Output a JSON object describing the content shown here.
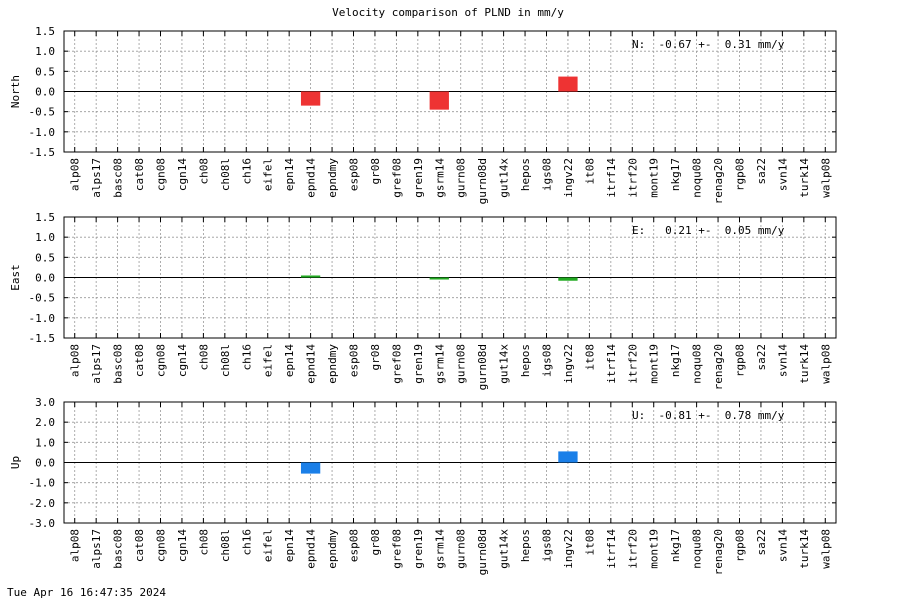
{
  "chart_data": {
    "type": "bar",
    "title": "Velocity comparison of PLND in mm/y",
    "categories": [
      "alp08",
      "alps17",
      "basc08",
      "cat08",
      "cgn08",
      "cgn14",
      "ch08",
      "ch08l",
      "ch16",
      "eifel",
      "epn14",
      "epnd14",
      "epndmy",
      "esp08",
      "gr08",
      "gref08",
      "gren19",
      "gsrm14",
      "gurn08",
      "gurn08d",
      "gut14x",
      "hepos",
      "igs08",
      "ingv22",
      "it08",
      "itrf14",
      "itrf20",
      "mont19",
      "nkg17",
      "noqu08",
      "renag20",
      "rgp08",
      "sa22",
      "svn14",
      "turk14",
      "walp08"
    ],
    "grid": true,
    "panels": [
      {
        "ylabel": "North",
        "ylim": [
          -1.5,
          1.5
        ],
        "yticks": [
          "1.5",
          "1.0",
          "0.5",
          "0.0",
          "-0.5",
          "-1.0",
          "-1.5"
        ],
        "ytick_values": [
          1.5,
          1.0,
          0.5,
          0.0,
          -0.5,
          -1.0,
          -1.5
        ],
        "color": "#ee3333",
        "annotation": "N:  -0.67 +-  0.31 mm/y",
        "values": {
          "epnd14": -0.35,
          "gsrm14": -0.45,
          "ingv22": 0.37
        }
      },
      {
        "ylabel": "East",
        "ylim": [
          -1.5,
          1.5
        ],
        "yticks": [
          "1.5",
          "1.0",
          "0.5",
          "0.0",
          "-0.5",
          "-1.0",
          "-1.5"
        ],
        "ytick_values": [
          1.5,
          1.0,
          0.5,
          0.0,
          -0.5,
          -1.0,
          -1.5
        ],
        "color": "#22aa22",
        "annotation": "E:   0.21 +-  0.05 mm/y",
        "values": {
          "epnd14": 0.05,
          "gsrm14": -0.05,
          "ingv22": -0.08
        }
      },
      {
        "ylabel": "Up",
        "ylim": [
          -3.0,
          3.0
        ],
        "yticks": [
          "3.0",
          "2.0",
          "1.0",
          "0.0",
          "-1.0",
          "-2.0",
          "-3.0"
        ],
        "ytick_values": [
          3.0,
          2.0,
          1.0,
          0.0,
          -1.0,
          -2.0,
          -3.0
        ],
        "color": "#1a7fe8",
        "annotation": "U:  -0.81 +-  0.78 mm/y",
        "values": {
          "epnd14": -0.55,
          "ingv22": 0.55
        }
      }
    ]
  },
  "footer": "Tue Apr 16 16:47:35 2024"
}
